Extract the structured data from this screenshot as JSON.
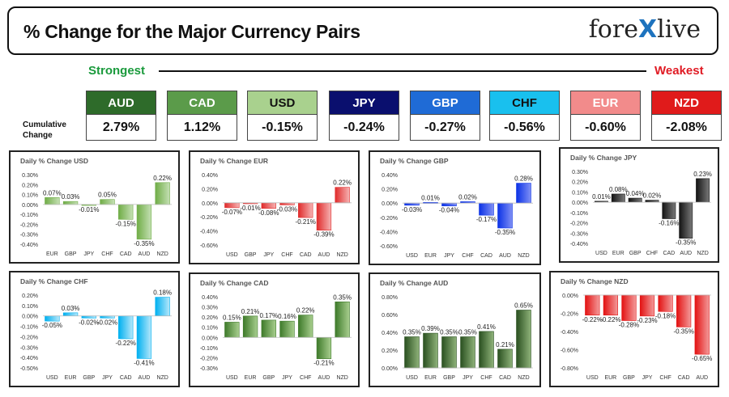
{
  "header": {
    "title": "% Change for the Major Currency Pairs",
    "logo_left": "fore",
    "logo_x": "X",
    "logo_right": "live",
    "strongest_label": "Strongest",
    "weakest_label": "Weakest",
    "cumulative_label": "Cumulative Change"
  },
  "ranking": [
    {
      "ccy": "AUD",
      "value": "2.79%",
      "color": "#2e6b2a",
      "textcolor": "#ffffff"
    },
    {
      "ccy": "CAD",
      "value": "1.12%",
      "color": "#5b9b4a",
      "textcolor": "#ffffff"
    },
    {
      "ccy": "USD",
      "value": "-0.15%",
      "color": "#a9d18e",
      "textcolor": "#111111"
    },
    {
      "ccy": "JPY",
      "value": "-0.24%",
      "color": "#0a0f6e",
      "textcolor": "#ffffff"
    },
    {
      "ccy": "GBP",
      "value": "-0.27%",
      "color": "#1f6bd6",
      "textcolor": "#ffffff"
    },
    {
      "ccy": "CHF",
      "value": "-0.56%",
      "color": "#19c0ee",
      "textcolor": "#111111"
    },
    {
      "ccy": "EUR",
      "value": "-0.60%",
      "color": "#f28b8b",
      "textcolor": "#ffffff"
    },
    {
      "ccy": "NZD",
      "value": "-2.08%",
      "color": "#e01b1b",
      "textcolor": "#ffffff"
    }
  ],
  "chart_data": [
    {
      "type": "bar",
      "title": "Daily % Change USD",
      "color": "#70ad47",
      "grad": "#c5e0b4",
      "categories": [
        "EUR",
        "GBP",
        "JPY",
        "CHF",
        "CAD",
        "AUD",
        "NZD"
      ],
      "values": [
        0.07,
        0.03,
        -0.01,
        0.05,
        -0.15,
        -0.35,
        0.22
      ],
      "labels": [
        "0.07%",
        "0.03%",
        "-0.01%",
        "0.05%",
        "-0.15%",
        "-0.35%",
        "0.22%"
      ],
      "ticks": [
        "0.30%",
        "0.20%",
        "0.10%",
        "0.00%",
        "-0.10%",
        "-0.20%",
        "-0.30%",
        "-0.40%"
      ],
      "ylim": [
        -0.4,
        0.3
      ]
    },
    {
      "type": "bar",
      "title": "Daily % Change EUR",
      "color": "#e02b2b",
      "grad": "#f6b3b3",
      "categories": [
        "USD",
        "GBP",
        "JPY",
        "CHF",
        "CAD",
        "AUD",
        "NZD"
      ],
      "values": [
        -0.07,
        -0.01,
        -0.08,
        -0.03,
        -0.21,
        -0.39,
        0.22
      ],
      "labels": [
        "-0.07%",
        "-0.01%",
        "-0.08%",
        "-0.03%",
        "-0.21%",
        "-0.39%",
        "0.22%"
      ],
      "ticks": [
        "0.40%",
        "0.20%",
        "0.00%",
        "-0.20%",
        "-0.40%",
        "-0.60%"
      ],
      "ylim": [
        -0.6,
        0.4
      ]
    },
    {
      "type": "bar",
      "title": "Daily % Change GBP",
      "color": "#0b32e6",
      "grad": "#7f8ff5",
      "categories": [
        "USD",
        "EUR",
        "JPY",
        "CHF",
        "CAD",
        "AUD",
        "NZD"
      ],
      "values": [
        -0.03,
        0.01,
        -0.04,
        0.02,
        -0.17,
        -0.35,
        0.28
      ],
      "labels": [
        "-0.03%",
        "0.01%",
        "-0.04%",
        "0.02%",
        "-0.17%",
        "-0.35%",
        "0.28%"
      ],
      "ticks": [
        "0.40%",
        "0.20%",
        "0.00%",
        "-0.20%",
        "-0.40%",
        "-0.60%"
      ],
      "ylim": [
        -0.6,
        0.4
      ]
    },
    {
      "type": "bar",
      "title": "Daily % Change JPY",
      "color": "#141414",
      "grad": "#7a7a7a",
      "categories": [
        "USD",
        "EUR",
        "GBP",
        "CHF",
        "CAD",
        "AUD",
        "NZD"
      ],
      "values": [
        0.01,
        0.08,
        0.04,
        0.02,
        -0.16,
        -0.35,
        0.23
      ],
      "labels": [
        "0.01%",
        "0.08%",
        "0.04%",
        "0.02%",
        "-0.16%",
        "-0.35%",
        "0.23%"
      ],
      "ticks": [
        "0.30%",
        "0.20%",
        "0.10%",
        "0.00%",
        "-0.10%",
        "-0.20%",
        "-0.30%",
        "-0.40%"
      ],
      "ylim": [
        -0.4,
        0.3
      ]
    },
    {
      "type": "bar",
      "title": "Daily % Change CHF",
      "color": "#00b0f0",
      "grad": "#b6e8fb",
      "categories": [
        "USD",
        "EUR",
        "GBP",
        "JPY",
        "CAD",
        "AUD",
        "NZD"
      ],
      "values": [
        -0.05,
        0.03,
        -0.02,
        -0.02,
        -0.22,
        -0.41,
        0.18
      ],
      "labels": [
        "-0.05%",
        "0.03%",
        "-0.02%",
        "-0.02%",
        "-0.22%",
        "-0.41%",
        "0.18%"
      ],
      "ticks": [
        "0.20%",
        "0.10%",
        "0.00%",
        "-0.10%",
        "-0.20%",
        "-0.30%",
        "-0.40%",
        "-0.50%"
      ],
      "ylim": [
        -0.5,
        0.2
      ]
    },
    {
      "type": "bar",
      "title": "Daily % Change CAD",
      "color": "#3e7a2a",
      "grad": "#a9cf8f",
      "categories": [
        "USD",
        "EUR",
        "GBP",
        "JPY",
        "CHF",
        "AUD",
        "NZD"
      ],
      "values": [
        0.15,
        0.21,
        0.17,
        0.16,
        0.22,
        -0.21,
        0.35
      ],
      "labels": [
        "0.15%",
        "0.21%",
        "0.17%",
        "0.16%",
        "0.22%",
        "-0.21%",
        "0.35%"
      ],
      "ticks": [
        "0.40%",
        "0.30%",
        "0.20%",
        "0.10%",
        "0.00%",
        "-0.10%",
        "-0.20%",
        "-0.30%"
      ],
      "ylim": [
        -0.3,
        0.4
      ]
    },
    {
      "type": "bar",
      "title": "Daily % Change AUD",
      "color": "#2a5020",
      "grad": "#8fb37a",
      "categories": [
        "USD",
        "EUR",
        "GBP",
        "JPY",
        "CHF",
        "CAD",
        "NZD"
      ],
      "values": [
        0.35,
        0.39,
        0.35,
        0.35,
        0.41,
        0.21,
        0.65
      ],
      "labels": [
        "0.35%",
        "0.39%",
        "0.35%",
        "0.35%",
        "0.41%",
        "0.21%",
        "0.65%"
      ],
      "ticks": [
        "0.80%",
        "0.60%",
        "0.40%",
        "0.20%",
        "0.00%"
      ],
      "ylim": [
        0.0,
        0.8
      ]
    },
    {
      "type": "bar",
      "title": "Daily % Change NZD",
      "color": "#e31212",
      "grad": "#f39a9a",
      "categories": [
        "USD",
        "EUR",
        "GBP",
        "JPY",
        "CHF",
        "CAD",
        "AUD"
      ],
      "values": [
        -0.22,
        -0.22,
        -0.28,
        -0.23,
        -0.18,
        -0.35,
        -0.65
      ],
      "labels": [
        "-0.22%",
        "-0.22%",
        "-0.28%",
        "-0.23%",
        "-0.18%",
        "-0.35%",
        "-0.65%"
      ],
      "ticks": [
        "0.00%",
        "-0.20%",
        "-0.40%",
        "-0.60%",
        "-0.80%"
      ],
      "ylim": [
        -0.8,
        0.0
      ]
    }
  ]
}
